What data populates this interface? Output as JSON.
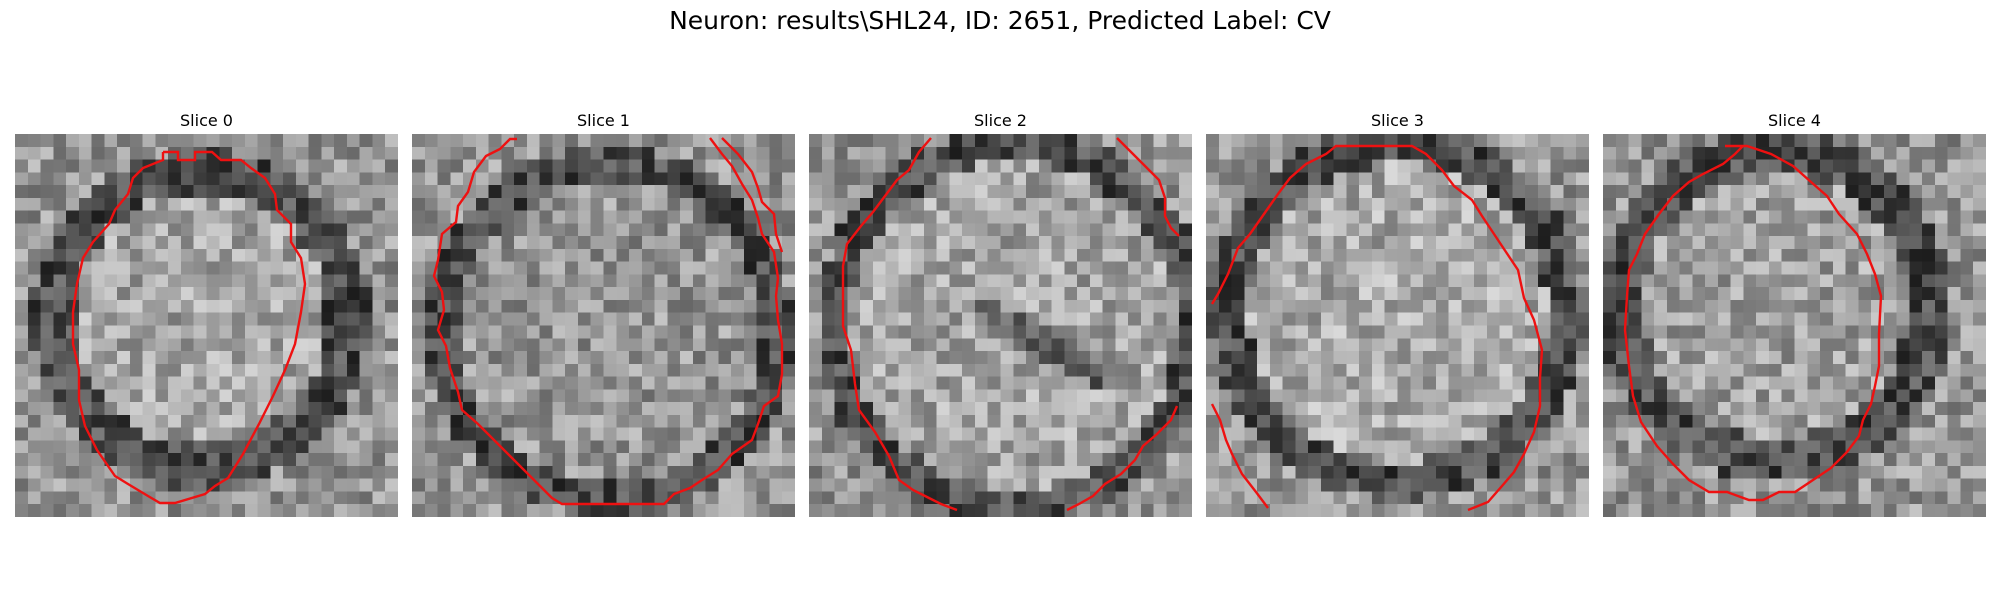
{
  "figure": {
    "title": "Neuron: results\\SHL24, ID: 2651, Predicted Label: CV"
  },
  "colors": {
    "contour": "#ee1111"
  },
  "panels": [
    {
      "title": "Slice 0"
    },
    {
      "title": "Slice 1"
    },
    {
      "title": "Slice 2"
    },
    {
      "title": "Slice 3"
    },
    {
      "title": "Slice 4"
    }
  ]
}
